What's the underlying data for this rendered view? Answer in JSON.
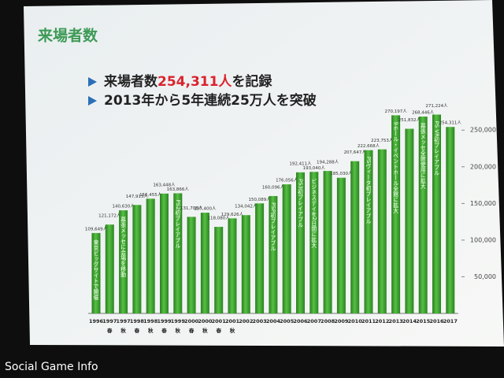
{
  "chart_data": {
    "type": "bar",
    "title": "来場者数",
    "headline": {
      "before": "来場者数",
      "highlight": "254,311人",
      "after": "を記録",
      "highlight_color": "#d9232e"
    },
    "subheadline": "2013年から5年連続25万人を突破",
    "categories": [
      "1996",
      "1997",
      "1997",
      "1998",
      "1998",
      "1999",
      "1999",
      "2000",
      "2000",
      "2001",
      "2001",
      "2002",
      "2003",
      "2004",
      "2005",
      "2006",
      "2007",
      "2008",
      "2009",
      "2010",
      "2011",
      "2012",
      "2013",
      "2014",
      "2015",
      "2016",
      "2017"
    ],
    "sublabels": [
      null,
      "春",
      "秋",
      "春",
      "秋",
      "春",
      "秋",
      "春",
      "秋",
      "春",
      "秋",
      null,
      null,
      null,
      null,
      null,
      null,
      null,
      null,
      null,
      null,
      null,
      null,
      null,
      null,
      null,
      null
    ],
    "values": [
      109649,
      121172,
      140630,
      147913,
      156455,
      163448,
      163866,
      131708,
      137400,
      118080,
      129626,
      134042,
      150089,
      160096,
      176056,
      192411,
      193040,
      194288,
      185030,
      207647,
      222668,
      223753,
      270197,
      251832,
      268446,
      271224,
      254311
    ],
    "value_labels": [
      "109,649人",
      "121,172人",
      "140,630人",
      "147,913人",
      "156,455人",
      "163,448人",
      "163,866人",
      "131,708人",
      "137,400人",
      "118,080人",
      "129,626人",
      "134,042人",
      "150,089人",
      "160,096人",
      "176,056人",
      "192,411人",
      "193,040人",
      "194,288人",
      "185,030人",
      "207,647人",
      "222,668人",
      "223,753人",
      "270,197人",
      "251,832人",
      "268,446人",
      "271,224人",
      "254,311人"
    ],
    "bar_notes": [
      "東京ビッグサイトで開催",
      null,
      "幕張メッセに会場を移動",
      null,
      null,
      null,
      "PS2初プレイアブル",
      null,
      null,
      null,
      null,
      null,
      null,
      "PSP初プレイアブル",
      null,
      "PS3初プレイアブル",
      "ビジネスデイを2日間に拡大",
      null,
      null,
      null,
      "PSヴィータ初プレイアブル",
      null,
      "9ホール・イベントホール全館に拡大",
      null,
      "幕張メッセ全館使用に拡大",
      "PS VR初プレイアブル",
      null
    ],
    "color": "#3fa42f",
    "ylim": [
      0,
      290000
    ],
    "yticks": [
      {
        "value": 50000,
        "label": "50,000"
      },
      {
        "value": 100000,
        "label": "100,000"
      },
      {
        "value": 150000,
        "label": "150,000"
      },
      {
        "value": 200000,
        "label": "200,000"
      },
      {
        "value": 250000,
        "label": "250,000"
      }
    ],
    "watermark": "Social Game Info"
  }
}
